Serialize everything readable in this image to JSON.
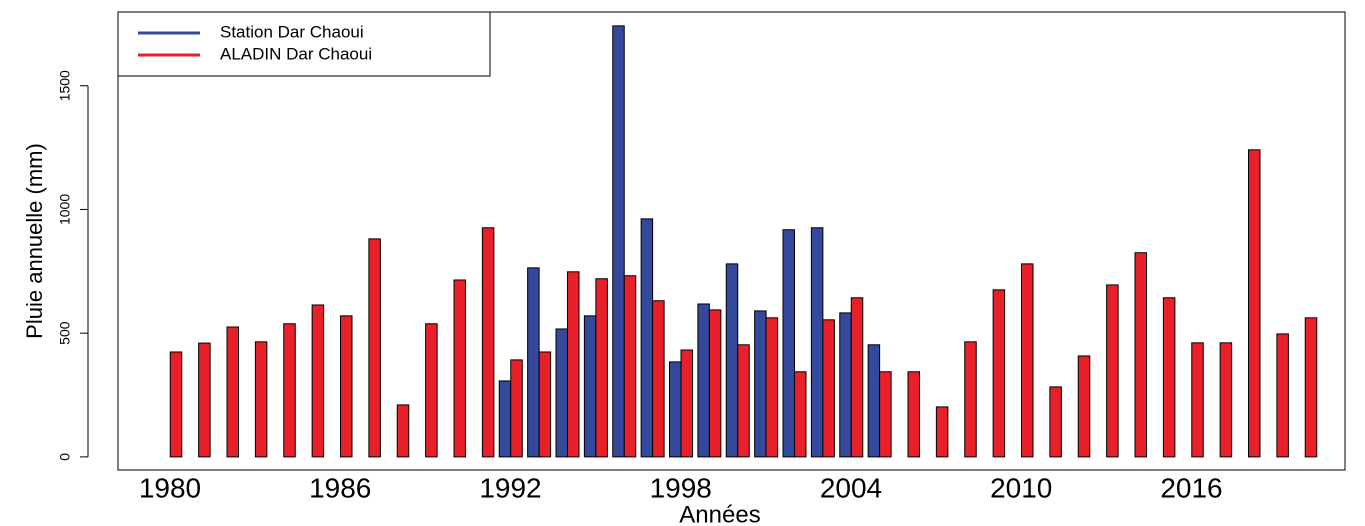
{
  "chart_data": {
    "type": "bar",
    "x_label": "Années",
    "y_label": "Pluie annuelle (mm)",
    "categories": [
      "1980",
      null,
      null,
      null,
      null,
      null,
      "1986",
      null,
      null,
      null,
      null,
      null,
      "1992",
      null,
      null,
      null,
      null,
      null,
      "1998",
      null,
      null,
      null,
      null,
      null,
      "2004",
      null,
      null,
      null,
      null,
      null,
      "2010",
      null,
      null,
      null,
      null,
      null,
      "2016",
      null,
      null,
      null,
      null
    ],
    "series": [
      {
        "name": "Station Dar Chaoui",
        "color": "#34499b",
        "values": [
          null,
          null,
          null,
          null,
          null,
          null,
          null,
          null,
          null,
          null,
          null,
          null,
          307,
          764,
          517,
          570,
          1742,
          962,
          384,
          618,
          780,
          590,
          918,
          926,
          582,
          453,
          null,
          null,
          null,
          null,
          null,
          null,
          null,
          null,
          null,
          null,
          null,
          null,
          null,
          null,
          null
        ]
      },
      {
        "name": "ALADIN Dar Chaoui",
        "color": "#e8202a",
        "values": [
          424,
          460,
          525,
          465,
          538,
          614,
          570,
          881,
          210,
          538,
          715,
          926,
          392,
          424,
          748,
          720,
          732,
          631,
          432,
          594,
          453,
          562,
          344,
          554,
          643,
          344,
          344,
          202,
          465,
          675,
          780,
          283,
          408,
          695,
          825,
          643,
          461,
          461,
          1241,
          497,
          562
        ]
      }
    ],
    "ylim": [
      -53,
      1798
    ],
    "yticks": [
      0,
      500,
      1000,
      1500
    ],
    "legend": "top-left"
  }
}
